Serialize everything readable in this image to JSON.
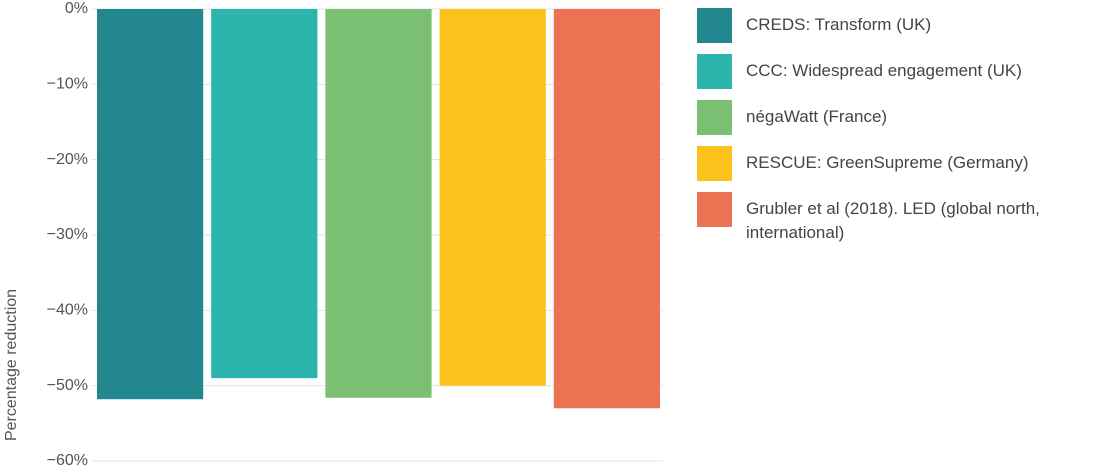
{
  "chart_data": {
    "type": "bar",
    "y_label": "Percentage reduction",
    "categories": [
      null
    ],
    "series": [
      {
        "name": "CREDS: Transform (UK)",
        "color": "#22878e",
        "values": [
          -51.8
        ]
      },
      {
        "name": "CCC: Widespread engagement (UK)",
        "color": "#2bb5ad",
        "values": [
          -49
        ]
      },
      {
        "name": "négaWatt (France)",
        "color": "#7bbf72",
        "values": [
          -51.6
        ]
      },
      {
        "name": "RESCUE: GreenSupreme (Germany)",
        "color": "#fbc21b",
        "values": [
          -50
        ]
      },
      {
        "name": "Grubler et al (2018). LED (global north, international)",
        "color": "#ec7254",
        "values": [
          -53
        ]
      }
    ],
    "ylim": [
      -60,
      0
    ],
    "yticks": [
      {
        "value": 0,
        "label": "0%"
      },
      {
        "value": -10,
        "label": "−10%"
      },
      {
        "value": -20,
        "label": "−20%"
      },
      {
        "value": -30,
        "label": "−30%"
      },
      {
        "value": -40,
        "label": "−40%"
      },
      {
        "value": -50,
        "label": "−50%"
      },
      {
        "value": -60,
        "label": "−60%"
      }
    ],
    "grid": true
  }
}
